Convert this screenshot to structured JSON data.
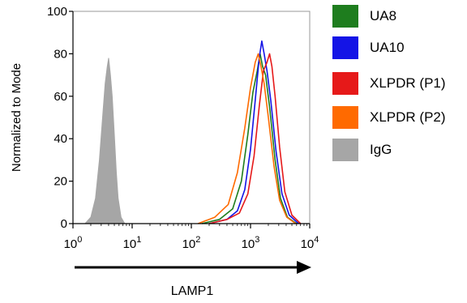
{
  "chart_data": {
    "type": "area",
    "title": "",
    "xlabel": "LAMP1",
    "ylabel": "Normalized to Mode",
    "x_scale": "log",
    "xlim": [
      1,
      10000
    ],
    "ylim": [
      0,
      100
    ],
    "x_ticks": [
      {
        "value": 1,
        "base": "10",
        "exp": "0"
      },
      {
        "value": 10,
        "base": "10",
        "exp": "1"
      },
      {
        "value": 100,
        "base": "10",
        "exp": "2"
      },
      {
        "value": 1000,
        "base": "10",
        "exp": "3"
      },
      {
        "value": 10000,
        "base": "10",
        "exp": "4"
      }
    ],
    "y_ticks": [
      "0",
      "20",
      "40",
      "60",
      "80",
      "100"
    ],
    "y_tick_values": [
      0,
      20,
      40,
      60,
      80,
      100
    ],
    "grid": false,
    "legend_position": "right",
    "series": [
      {
        "name": "IgG",
        "color": "#a6a6a6",
        "filled": true,
        "x": [
          1.6,
          2.0,
          2.4,
          2.8,
          3.2,
          3.5,
          3.8,
          4.0,
          4.3,
          4.6,
          5.0,
          5.4,
          5.8,
          6.5,
          7.5
        ],
        "y": [
          0,
          3,
          12,
          30,
          52,
          66,
          74,
          78,
          70,
          60,
          42,
          24,
          12,
          3,
          0
        ]
      },
      {
        "name": "UA8",
        "color": "#1e7d1e",
        "filled": false,
        "x": [
          150,
          300,
          500,
          700,
          900,
          1100,
          1300,
          1450,
          1600,
          1800,
          2100,
          2600,
          3200,
          4200,
          6000
        ],
        "y": [
          0,
          2,
          7,
          20,
          42,
          62,
          72,
          80,
          74,
          70,
          55,
          30,
          12,
          3,
          0
        ]
      },
      {
        "name": "UA10",
        "color": "#1414e6",
        "filled": false,
        "x": [
          200,
          400,
          600,
          800,
          1000,
          1200,
          1400,
          1550,
          1700,
          1900,
          2200,
          2700,
          3400,
          4500,
          6500
        ],
        "y": [
          0,
          2,
          6,
          16,
          35,
          58,
          78,
          86,
          80,
          72,
          58,
          34,
          14,
          4,
          0
        ]
      },
      {
        "name": "XLPDR (P1)",
        "color": "#e61919",
        "filled": false,
        "x": [
          200,
          400,
          650,
          900,
          1150,
          1400,
          1650,
          1900,
          2100,
          2300,
          2600,
          3100,
          3800,
          5000,
          7000
        ],
        "y": [
          0,
          2,
          5,
          14,
          32,
          55,
          72,
          76,
          80,
          74,
          60,
          36,
          15,
          4,
          0
        ]
      },
      {
        "name": "XLPDR (P2)",
        "color": "#ff6a00",
        "filled": false,
        "x": [
          130,
          250,
          420,
          600,
          800,
          1000,
          1200,
          1350,
          1500,
          1700,
          2000,
          2500,
          3100,
          4100,
          5800
        ],
        "y": [
          0,
          3,
          9,
          24,
          45,
          64,
          76,
          80,
          74,
          66,
          50,
          27,
          11,
          3,
          0
        ]
      }
    ]
  },
  "legend": [
    {
      "label": "UA8",
      "color": "#1e7d1e"
    },
    {
      "label": "UA10",
      "color": "#1414e6"
    },
    {
      "label": "XLPDR (P1)",
      "color": "#e61919"
    },
    {
      "label": "XLPDR (P2)",
      "color": "#ff6a00"
    },
    {
      "label": "IgG",
      "color": "#a6a6a6"
    }
  ]
}
